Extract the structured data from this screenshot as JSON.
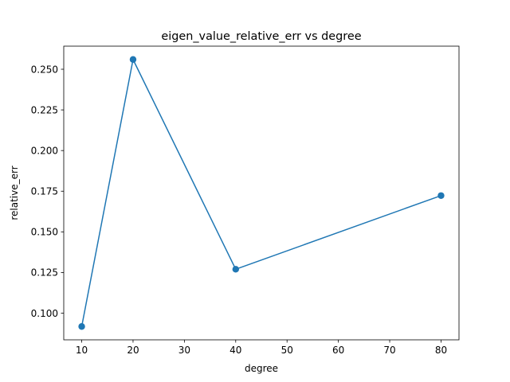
{
  "chart_data": {
    "type": "line",
    "title": "eigen_value_relative_err vs degree",
    "xlabel": "degree",
    "ylabel": "relative_err",
    "x": [
      10,
      20,
      40,
      80
    ],
    "series": [
      {
        "values": [
          0.0918,
          0.256,
          0.127,
          0.1723
        ],
        "color": "#1f77b4",
        "marker": "circle"
      }
    ],
    "xlim": [
      6.5,
      83.5
    ],
    "ylim": [
      0.0836,
      0.2642
    ],
    "xticks": [
      10,
      20,
      30,
      40,
      50,
      60,
      70,
      80
    ],
    "xtick_labels": [
      "10",
      "20",
      "30",
      "40",
      "50",
      "60",
      "70",
      "80"
    ],
    "yticks": [
      0.1,
      0.125,
      0.15,
      0.175,
      0.2,
      0.225,
      0.25
    ],
    "ytick_labels": [
      "0.100",
      "0.125",
      "0.150",
      "0.175",
      "0.200",
      "0.225",
      "0.250"
    ],
    "grid": false,
    "legend": "none"
  }
}
